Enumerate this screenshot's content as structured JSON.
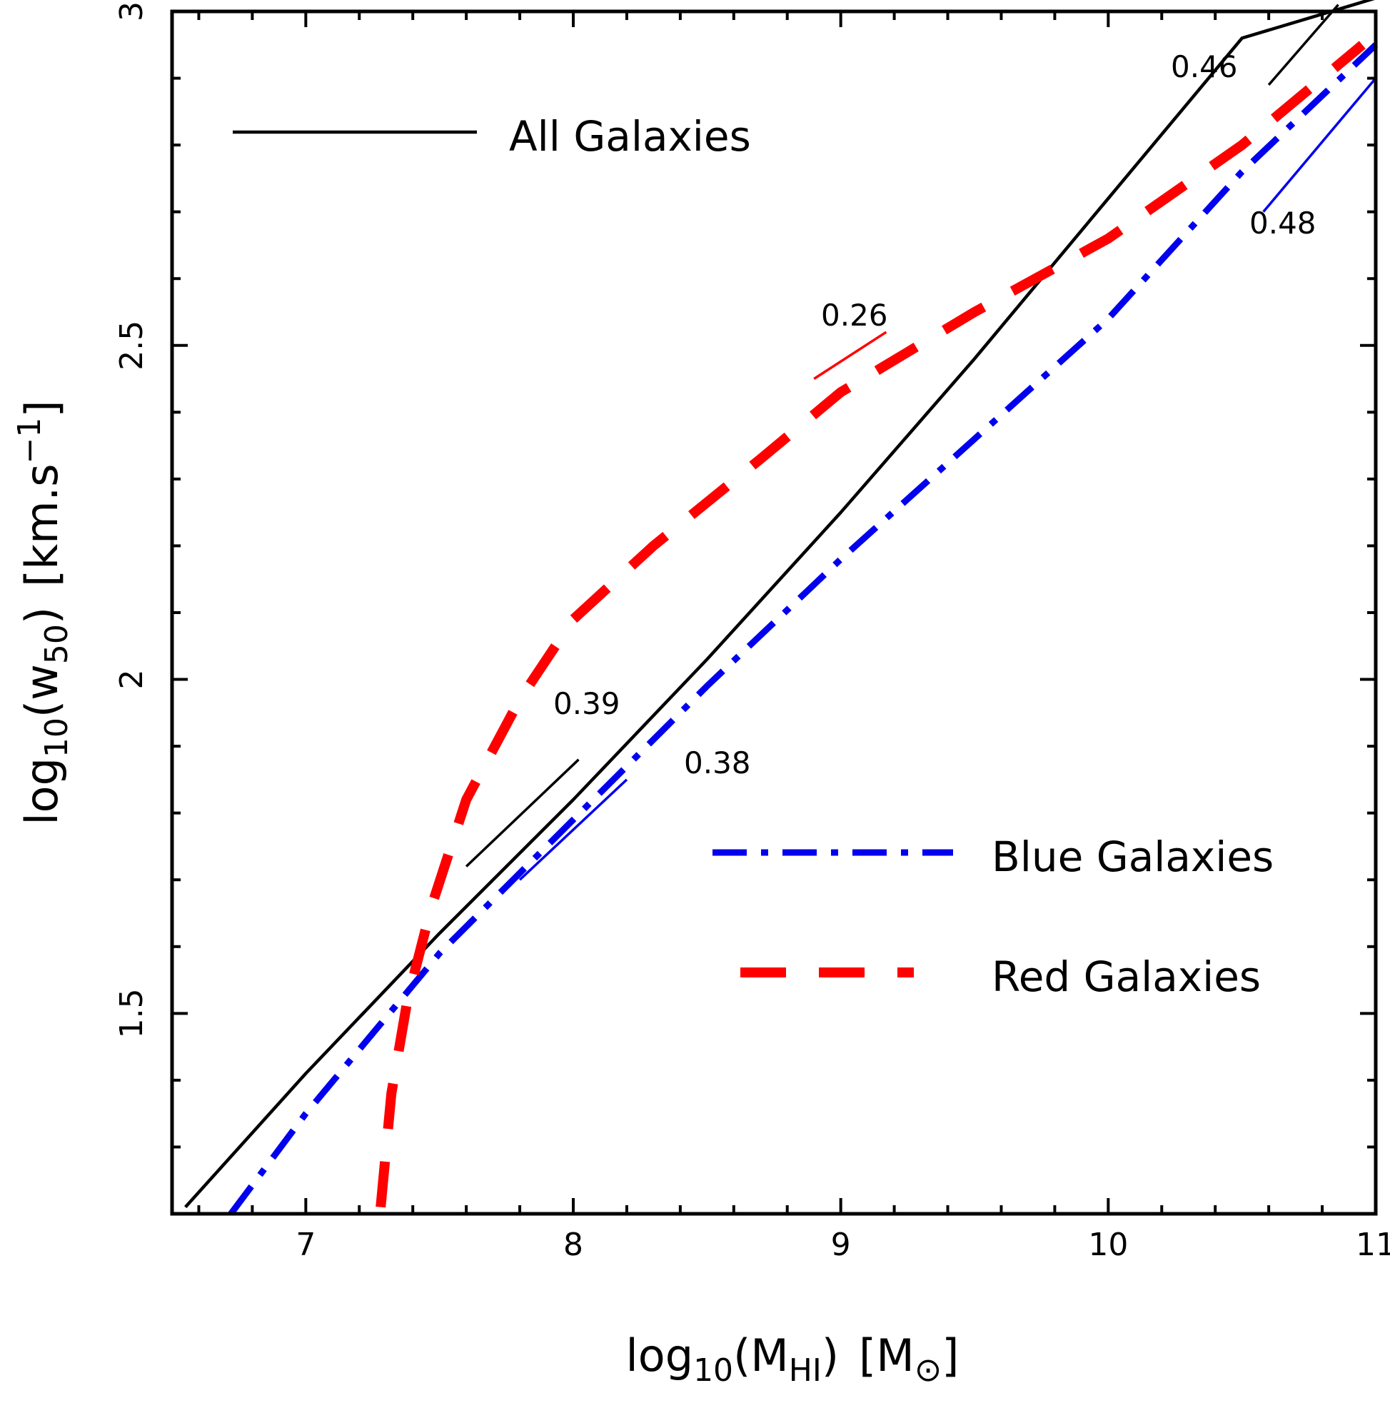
{
  "chart_data": {
    "type": "line",
    "title": "",
    "xlabel": {
      "base": "log",
      "sub": "10",
      "open": "(M",
      "sub2": "HI",
      "close": ")",
      "unit_open": "[M",
      "unit_sym": "⊙",
      "unit_close": "]"
    },
    "ylabel": {
      "base": "log",
      "sub": "10",
      "open": "(w",
      "sub2": "50",
      "close": ")",
      "unit_open": "[km.s",
      "unit_sup": "−1",
      "unit_close": "]"
    },
    "xlim": [
      6.5,
      11
    ],
    "ylim": [
      1.2,
      3
    ],
    "x_ticks": [
      7,
      8,
      9,
      10,
      11
    ],
    "x_tick_labels": [
      "7",
      "8",
      "9",
      "10",
      "11"
    ],
    "y_ticks": [
      1.5,
      2,
      2.5,
      3
    ],
    "y_tick_labels": [
      "1.5",
      "2",
      "2.5",
      "3"
    ],
    "series": [
      {
        "name": "All Galaxies",
        "color": "#000000",
        "style": "solid",
        "points": [
          [
            6.55,
            1.21
          ],
          [
            7.0,
            1.41
          ],
          [
            7.5,
            1.62
          ],
          [
            8.0,
            1.82
          ],
          [
            8.5,
            2.03
          ],
          [
            9.0,
            2.25
          ],
          [
            9.5,
            2.48
          ],
          [
            10.0,
            2.72
          ],
          [
            10.5,
            2.96
          ],
          [
            11.0,
            3.02
          ]
        ]
      },
      {
        "name": "Blue Galaxies",
        "color": "#0000ee",
        "style": "dashdot",
        "points": [
          [
            6.72,
            1.2
          ],
          [
            7.0,
            1.35
          ],
          [
            7.5,
            1.59
          ],
          [
            8.0,
            1.79
          ],
          [
            8.5,
            1.99
          ],
          [
            9.0,
            2.18
          ],
          [
            9.5,
            2.36
          ],
          [
            10.0,
            2.54
          ],
          [
            10.5,
            2.76
          ],
          [
            11.0,
            2.95
          ]
        ]
      },
      {
        "name": "Red Galaxies",
        "color": "#ff0000",
        "style": "dashed",
        "points": [
          [
            7.28,
            1.21
          ],
          [
            7.32,
            1.38
          ],
          [
            7.38,
            1.52
          ],
          [
            7.47,
            1.66
          ],
          [
            7.6,
            1.82
          ],
          [
            7.8,
            1.97
          ],
          [
            8.0,
            2.09
          ],
          [
            8.3,
            2.2
          ],
          [
            8.7,
            2.33
          ],
          [
            9.0,
            2.43
          ],
          [
            9.5,
            2.55
          ],
          [
            10.0,
            2.66
          ],
          [
            10.5,
            2.8
          ],
          [
            10.95,
            2.95
          ]
        ]
      }
    ],
    "slope_markers": [
      {
        "label": "0.46",
        "color": "#000000",
        "x1": 10.6,
        "y1": 2.89,
        "x2": 10.86,
        "y2": 3.01
      },
      {
        "label": "0.48",
        "color": "#0000ee",
        "x1": 10.58,
        "y1": 2.7,
        "x2": 11.0,
        "y2": 2.9
      },
      {
        "label": "0.26",
        "color": "#ff0000",
        "x1": 8.9,
        "y1": 2.45,
        "x2": 9.17,
        "y2": 2.52
      },
      {
        "label": "0.39",
        "color": "#000000",
        "x1": 7.6,
        "y1": 1.72,
        "x2": 8.02,
        "y2": 1.88
      },
      {
        "label": "0.38",
        "color": "#0000ee",
        "x1": 7.8,
        "y1": 1.7,
        "x2": 8.2,
        "y2": 1.85
      }
    ],
    "legend": [
      {
        "label": "All Galaxies",
        "color": "#000000",
        "style": "solid"
      },
      {
        "label": "Blue Galaxies",
        "color": "#0000ee",
        "style": "dashdot"
      },
      {
        "label": "Red Galaxies",
        "color": "#ff0000",
        "style": "dashed"
      }
    ]
  }
}
